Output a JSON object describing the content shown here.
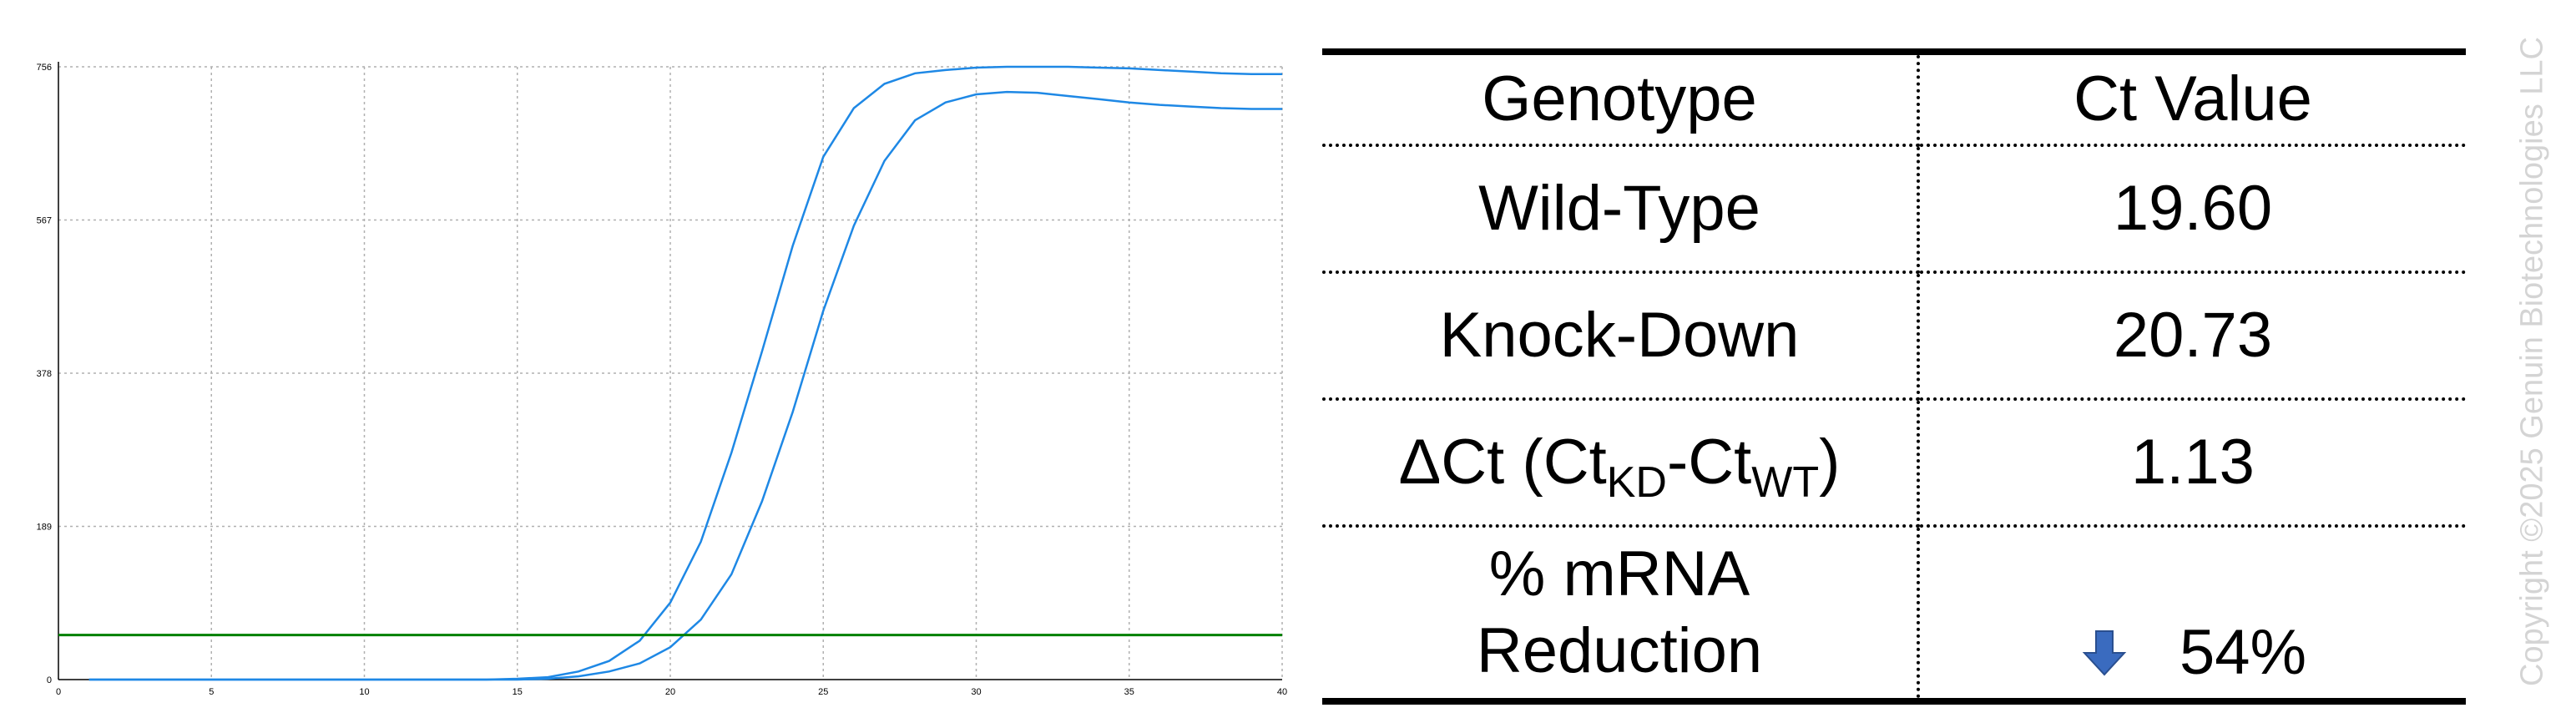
{
  "chart_data": {
    "type": "line",
    "title": "",
    "xlabel": "",
    "ylabel": "",
    "xlim": [
      0,
      40
    ],
    "ylim": [
      0,
      756
    ],
    "x_ticks": [
      0,
      5,
      10,
      15,
      20,
      25,
      30,
      35,
      40
    ],
    "y_ticks": [
      0,
      189,
      378,
      567,
      756
    ],
    "grid": true,
    "series": [
      {
        "color": "#1e88e5",
        "points": [
          [
            1,
            0
          ],
          [
            5,
            0
          ],
          [
            10,
            0
          ],
          [
            14,
            0
          ],
          [
            15,
            1
          ],
          [
            16,
            3
          ],
          [
            17,
            10
          ],
          [
            18,
            23
          ],
          [
            19,
            48
          ],
          [
            20,
            95
          ],
          [
            21,
            170
          ],
          [
            22,
            280
          ],
          [
            23,
            405
          ],
          [
            24,
            535
          ],
          [
            25,
            645
          ],
          [
            26,
            705
          ],
          [
            27,
            735
          ],
          [
            28,
            748
          ],
          [
            29,
            752
          ],
          [
            30,
            755
          ],
          [
            31,
            756
          ],
          [
            32,
            756
          ],
          [
            33,
            756
          ],
          [
            34,
            755
          ],
          [
            35,
            754
          ],
          [
            36,
            752
          ],
          [
            37,
            750
          ],
          [
            38,
            748
          ],
          [
            39,
            747
          ],
          [
            40,
            747
          ]
        ]
      },
      {
        "color": "#1e88e5",
        "points": [
          [
            1,
            0
          ],
          [
            5,
            0
          ],
          [
            10,
            0
          ],
          [
            15,
            0
          ],
          [
            16,
            1
          ],
          [
            17,
            4
          ],
          [
            18,
            10
          ],
          [
            19,
            20
          ],
          [
            20,
            40
          ],
          [
            21,
            74
          ],
          [
            22,
            130
          ],
          [
            23,
            220
          ],
          [
            24,
            330
          ],
          [
            25,
            455
          ],
          [
            26,
            560
          ],
          [
            27,
            640
          ],
          [
            28,
            690
          ],
          [
            29,
            712
          ],
          [
            30,
            722
          ],
          [
            31,
            725
          ],
          [
            32,
            724
          ],
          [
            33,
            720
          ],
          [
            34,
            716
          ],
          [
            35,
            712
          ],
          [
            36,
            709
          ],
          [
            37,
            707
          ],
          [
            38,
            705
          ],
          [
            39,
            704
          ],
          [
            40,
            704
          ]
        ]
      }
    ],
    "threshold": {
      "value": 55,
      "color": "#008000"
    }
  },
  "table": {
    "header": {
      "genotype": "Genotype",
      "ct_value": "Ct Value"
    },
    "wild_type": {
      "label": "Wild-Type",
      "value": "19.60"
    },
    "knock_down": {
      "label": "Knock-Down",
      "value": "20.73"
    },
    "delta_ct": {
      "prefix": "ΔCt (Ct",
      "sub1": "KD",
      "mid": "-Ct",
      "sub2": "WT",
      "suffix": ")",
      "value": "1.13"
    },
    "reduction": {
      "label_line1": "% mRNA",
      "label_line2": "Reduction",
      "value": "54%",
      "icon": "down-arrow-icon",
      "icon_color": "#3a6bbf"
    }
  },
  "watermark": "Copyright ©2025 Genuin Biotechnologies LLC"
}
